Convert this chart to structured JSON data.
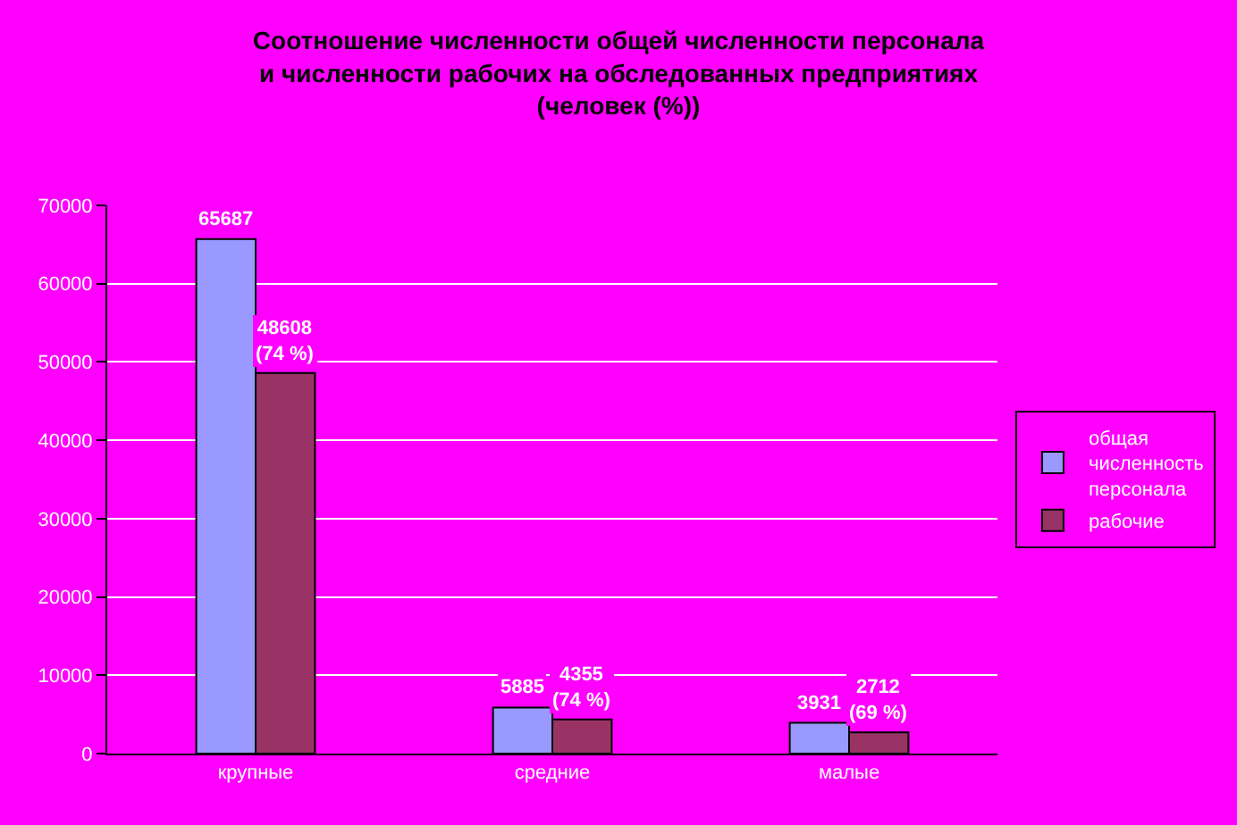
{
  "chart_data": {
    "type": "bar",
    "title": "Соотношение численности общей численности персонала\nи численности рабочих на обследованных предприятиях\n(человек (%))",
    "categories": [
      "крупные",
      "средние",
      "малые"
    ],
    "series": [
      {
        "name": "общая численность персонала",
        "color": "#9999ff",
        "values": [
          65687,
          5885,
          3931
        ],
        "value_labels": [
          "65687",
          "5885",
          "3931"
        ]
      },
      {
        "name": "рабочие",
        "color": "#993366",
        "values": [
          48608,
          4355,
          2712
        ],
        "value_labels": [
          "48608\n(74 %)",
          "4355\n(74 %)",
          "2712\n(69 %)"
        ]
      }
    ],
    "ylim": [
      0,
      70000
    ],
    "yticks": [
      0,
      10000,
      20000,
      30000,
      40000,
      50000,
      60000,
      70000
    ],
    "grid": "y",
    "legend": "right"
  }
}
